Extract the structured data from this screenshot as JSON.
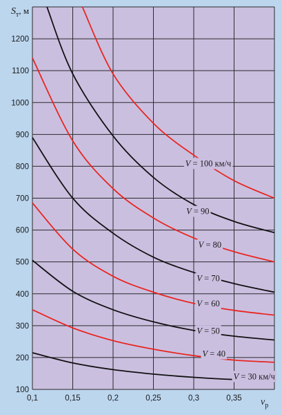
{
  "chart_data": {
    "type": "line",
    "xlabel_main": "ν",
    "xlabel_sub": "р",
    "ylabel_main": "S",
    "ylabel_sub": "т",
    "ylabel_unit": ", м",
    "xlim": [
      0.1,
      0.4
    ],
    "ylim": [
      100,
      1300
    ],
    "x_ticks": [
      0.1,
      0.15,
      0.2,
      0.25,
      0.3,
      0.35
    ],
    "x_tick_labels": [
      "0,1",
      "0,15",
      "0,2",
      "0,25",
      "0,3",
      "0,35"
    ],
    "y_ticks": [
      100,
      200,
      300,
      400,
      500,
      600,
      700,
      800,
      900,
      1000,
      1100,
      1200
    ],
    "y_tick_labels": [
      "100",
      "200",
      "300",
      "400",
      "500",
      "600",
      "700",
      "800",
      "900",
      "1000",
      "1100",
      "1200"
    ],
    "grid": true,
    "colors": {
      "black": "#111111",
      "red": "#e8261f",
      "plot_bg": "#cbbfe0",
      "page_bg": "#bcd6ee"
    },
    "series": [
      {
        "label_prefix": "V",
        "label_value": " = 30 км/ч",
        "color": "black",
        "points": [
          [
            0.1,
            215
          ],
          [
            0.15,
            183
          ],
          [
            0.2,
            162
          ],
          [
            0.25,
            148
          ],
          [
            0.3,
            138
          ],
          [
            0.35,
            131
          ],
          [
            0.4,
            127
          ]
        ]
      },
      {
        "label_prefix": "V",
        "label_value": " = 40",
        "color": "red",
        "points": [
          [
            0.1,
            350
          ],
          [
            0.15,
            293
          ],
          [
            0.2,
            253
          ],
          [
            0.25,
            226
          ],
          [
            0.3,
            206
          ],
          [
            0.35,
            192
          ],
          [
            0.4,
            185
          ]
        ]
      },
      {
        "label_prefix": "V",
        "label_value": " = 50",
        "color": "black",
        "points": [
          [
            0.1,
            505
          ],
          [
            0.15,
            408
          ],
          [
            0.2,
            350
          ],
          [
            0.25,
            312
          ],
          [
            0.3,
            285
          ],
          [
            0.35,
            267
          ],
          [
            0.4,
            255
          ]
        ]
      },
      {
        "label_prefix": "V",
        "label_value": " = 60",
        "color": "red",
        "points": [
          [
            0.1,
            685
          ],
          [
            0.15,
            540
          ],
          [
            0.2,
            455
          ],
          [
            0.25,
            405
          ],
          [
            0.3,
            370
          ],
          [
            0.35,
            348
          ],
          [
            0.4,
            333
          ]
        ]
      },
      {
        "label_prefix": "V",
        "label_value": " = 70",
        "color": "black",
        "points": [
          [
            0.1,
            890
          ],
          [
            0.15,
            700
          ],
          [
            0.2,
            590
          ],
          [
            0.25,
            515
          ],
          [
            0.3,
            467
          ],
          [
            0.35,
            432
          ],
          [
            0.4,
            405
          ]
        ]
      },
      {
        "label_prefix": "V",
        "label_value": " = 80",
        "color": "red",
        "points": [
          [
            0.1,
            1140
          ],
          [
            0.15,
            880
          ],
          [
            0.2,
            730
          ],
          [
            0.25,
            638
          ],
          [
            0.3,
            575
          ],
          [
            0.35,
            532
          ],
          [
            0.4,
            500
          ]
        ]
      },
      {
        "label_prefix": "V",
        "label_value": " = 90",
        "color": "black",
        "points": [
          [
            0.118,
            1300
          ],
          [
            0.15,
            1090
          ],
          [
            0.2,
            895
          ],
          [
            0.25,
            765
          ],
          [
            0.3,
            680
          ],
          [
            0.35,
            627
          ],
          [
            0.4,
            592
          ]
        ]
      },
      {
        "label_prefix": "V",
        "label_value": " = 100 км/ч",
        "color": "red",
        "points": [
          [
            0.162,
            1300
          ],
          [
            0.2,
            1090
          ],
          [
            0.25,
            935
          ],
          [
            0.3,
            835
          ],
          [
            0.35,
            755
          ],
          [
            0.4,
            700
          ]
        ]
      }
    ],
    "label_positions": [
      {
        "x": 0.375,
        "y": 132
      },
      {
        "x": 0.325,
        "y": 203
      },
      {
        "x": 0.318,
        "y": 275
      },
      {
        "x": 0.318,
        "y": 360
      },
      {
        "x": 0.318,
        "y": 440
      },
      {
        "x": 0.32,
        "y": 545
      },
      {
        "x": 0.305,
        "y": 650
      },
      {
        "x": 0.318,
        "y": 800
      }
    ]
  }
}
